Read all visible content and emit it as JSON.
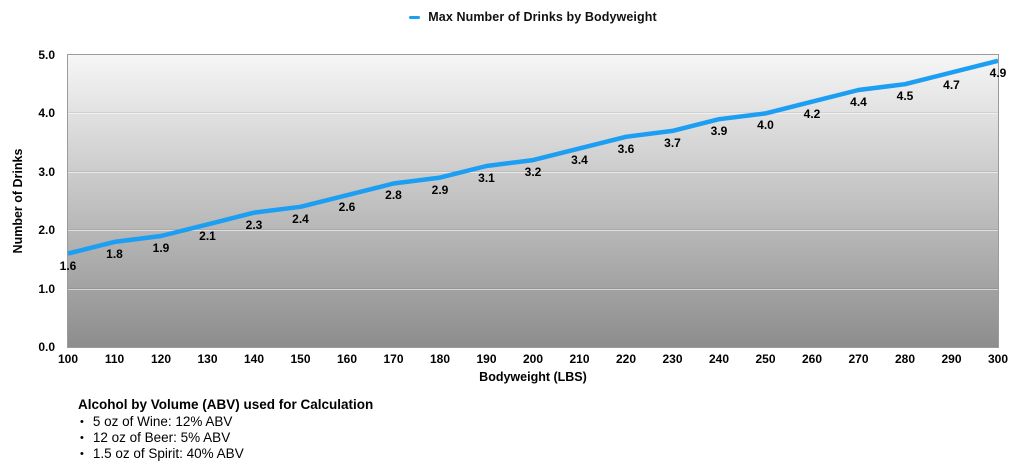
{
  "chart_data": {
    "type": "line",
    "title": "Max Number of Drinks by Bodyweight",
    "xlabel": "Bodyweight (LBS)",
    "ylabel": "Number of Drinks",
    "x": [
      100,
      110,
      120,
      130,
      140,
      150,
      160,
      170,
      180,
      190,
      200,
      210,
      220,
      230,
      240,
      250,
      260,
      270,
      280,
      290,
      300
    ],
    "values": [
      1.6,
      1.8,
      1.9,
      2.1,
      2.3,
      2.4,
      2.6,
      2.8,
      2.9,
      3.1,
      3.2,
      3.4,
      3.6,
      3.7,
      3.9,
      4.0,
      4.2,
      4.4,
      4.5,
      4.7,
      4.9
    ],
    "data_labels": [
      "1.6",
      "1.8",
      "1.9",
      "2.1",
      "2.3",
      "2.4",
      "2.6",
      "2.8",
      "2.9",
      "3.1",
      "3.2",
      "3.4",
      "3.6",
      "3.7",
      "3.9",
      "4.0",
      "4.2",
      "4.4",
      "4.5",
      "4.7",
      "4.9"
    ],
    "xlim": [
      100,
      300
    ],
    "ylim": [
      0,
      5
    ],
    "yticks": [
      0,
      1,
      2,
      3,
      4,
      5
    ],
    "ytick_labels": [
      "0.0",
      "1.0",
      "2.0",
      "3.0",
      "4.0",
      "5.0"
    ],
    "grid": "horizontal",
    "legend_position": "top-center",
    "series_color": "#1C9EF3",
    "plot_gradient_top": "#F6F6F6",
    "plot_gradient_bottom": "#8D8D8D",
    "grid_color": "rgba(255,255,255,0.55)",
    "grid_shadow_color": "rgba(0,0,0,0.07)",
    "border_color": "#9B9B9B"
  },
  "notes": {
    "title": "Alcohol by Volume (ABV) used for Calculation",
    "bullet": "•",
    "items": [
      "5 oz of Wine: 12% ABV",
      "12 oz of Beer: 5% ABV",
      "1.5 oz of Spirit: 40% ABV"
    ]
  }
}
